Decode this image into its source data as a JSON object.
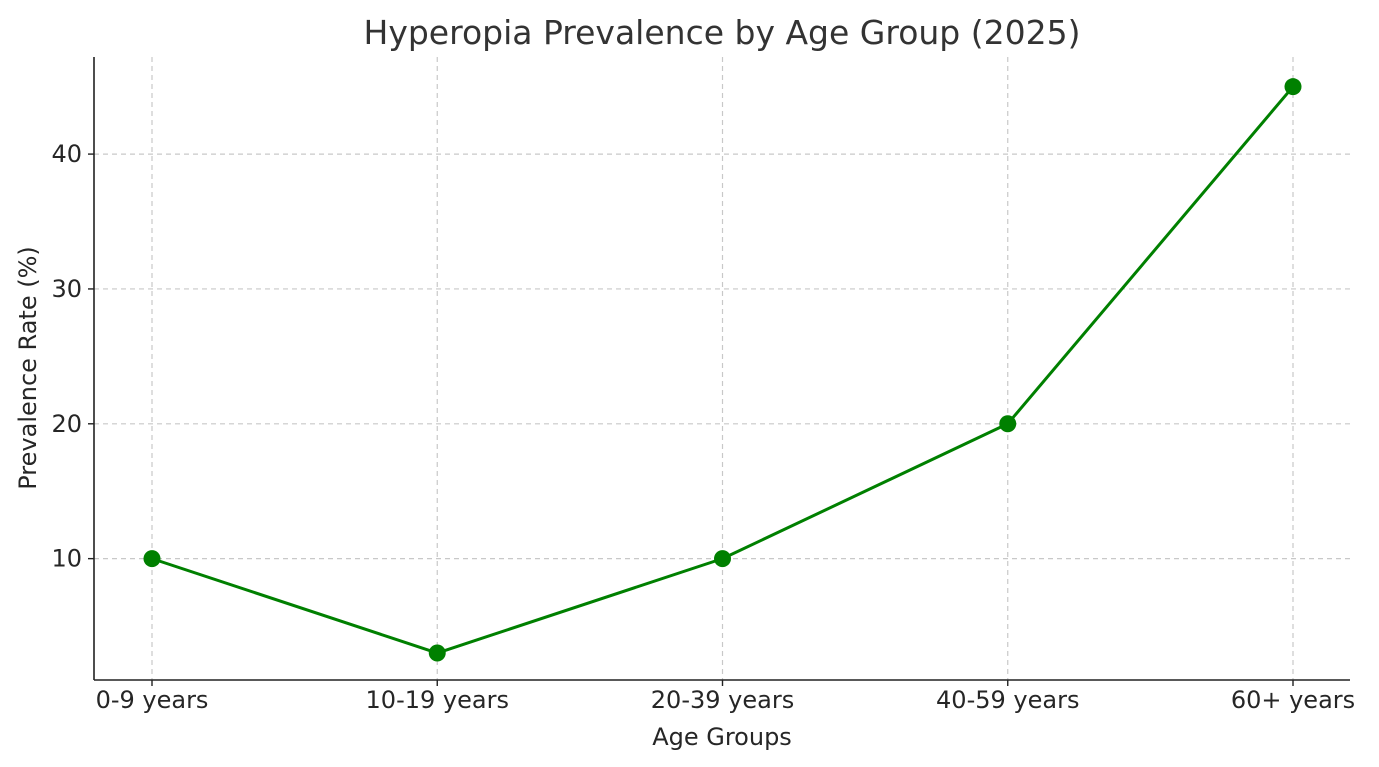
{
  "chart_data": {
    "type": "line",
    "title": "Hyperopia Prevalence by Age Group (2025)",
    "xlabel": "Age Groups",
    "ylabel": "Prevalence Rate (%)",
    "categories": [
      "0-9 years",
      "10-19 years",
      "20-39 years",
      "40-59 years",
      "60+ years"
    ],
    "series": [
      {
        "values": [
          10,
          3,
          10,
          20,
          45
        ],
        "color": "#008000"
      }
    ],
    "ylim": [
      1,
      47.2
    ],
    "yticks": [
      10,
      20,
      30,
      40
    ],
    "grid": true,
    "markers": "circle"
  }
}
